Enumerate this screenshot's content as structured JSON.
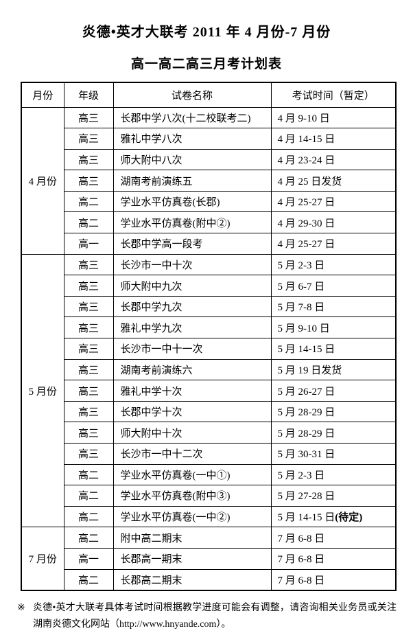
{
  "colors": {
    "background": "#ffffff",
    "text": "#000000",
    "border": "#000000"
  },
  "title": "炎德•英才大联考 2011 年 4 月份-7 月份",
  "subtitle": "高一高二高三月考计划表",
  "table": {
    "headers": [
      "月份",
      "年级",
      "试卷名称",
      "考试时间（暂定）"
    ],
    "groups": [
      {
        "month": "4 月份",
        "rows": [
          {
            "grade": "高三",
            "paper": "长郡中学八次(十二校联考二)",
            "time": "4 月 9-10 日"
          },
          {
            "grade": "高三",
            "paper": "雅礼中学八次",
            "time": "4 月 14-15 日"
          },
          {
            "grade": "高三",
            "paper": "师大附中八次",
            "time": "4 月 23-24 日"
          },
          {
            "grade": "高三",
            "paper": "湖南考前演练五",
            "time": "4 月 25 日发货"
          },
          {
            "grade": "高二",
            "paper": "学业水平仿真卷(长郡)",
            "time": "4 月 25-27 日"
          },
          {
            "grade": "高二",
            "paper": "学业水平仿真卷(附中②)",
            "time": "4 月 29-30 日"
          },
          {
            "grade": "高一",
            "paper": "长郡中学高一段考",
            "time": "4 月 25-27 日"
          }
        ]
      },
      {
        "month": "5 月份",
        "rows": [
          {
            "grade": "高三",
            "paper": "长沙市一中十次",
            "time": "5 月 2-3 日"
          },
          {
            "grade": "高三",
            "paper": "师大附中九次",
            "time": "5 月 6-7 日"
          },
          {
            "grade": "高三",
            "paper": "长郡中学九次",
            "time": "5 月 7-8 日"
          },
          {
            "grade": "高三",
            "paper": "雅礼中学九次",
            "time": "5 月 9-10 日"
          },
          {
            "grade": "高三",
            "paper": "长沙市一中十一次",
            "time": "5 月 14-15 日"
          },
          {
            "grade": "高三",
            "paper": "湖南考前演练六",
            "time": "5 月 19 日发货"
          },
          {
            "grade": "高三",
            "paper": "雅礼中学十次",
            "time": "5 月 26-27 日"
          },
          {
            "grade": "高三",
            "paper": "长郡中学十次",
            "time": "5 月 28-29 日"
          },
          {
            "grade": "高三",
            "paper": "师大附中十次",
            "time": "5 月 28-29 日"
          },
          {
            "grade": "高三",
            "paper": "长沙市一中十二次",
            "time": "5 月 30-31 日"
          },
          {
            "grade": "高二",
            "paper": "学业水平仿真卷(一中①)",
            "time": "5 月 2-3 日"
          },
          {
            "grade": "高二",
            "paper": "学业水平仿真卷(附中③)",
            "time": "5 月 27-28 日"
          },
          {
            "grade": "高二",
            "paper": "学业水平仿真卷(一中②)",
            "time": "5 月 14-15 日",
            "time_note": "(待定)"
          }
        ]
      },
      {
        "month": "7 月份",
        "rows": [
          {
            "grade": "高二",
            "paper": "附中高二期末",
            "time": "7 月 6-8 日"
          },
          {
            "grade": "高一",
            "paper": "长郡高一期末",
            "time": "7 月 6-8 日"
          },
          {
            "grade": "高二",
            "paper": "长郡高二期末",
            "time": "7 月 6-8 日"
          }
        ]
      }
    ]
  },
  "footnote": {
    "marker": "※",
    "text": "炎德•英才大联考具体考试时间根据教学进度可能会有调整，请咨询相关业务员或关注湖南炎德文化网站（http://www.hnyande.com）。"
  }
}
